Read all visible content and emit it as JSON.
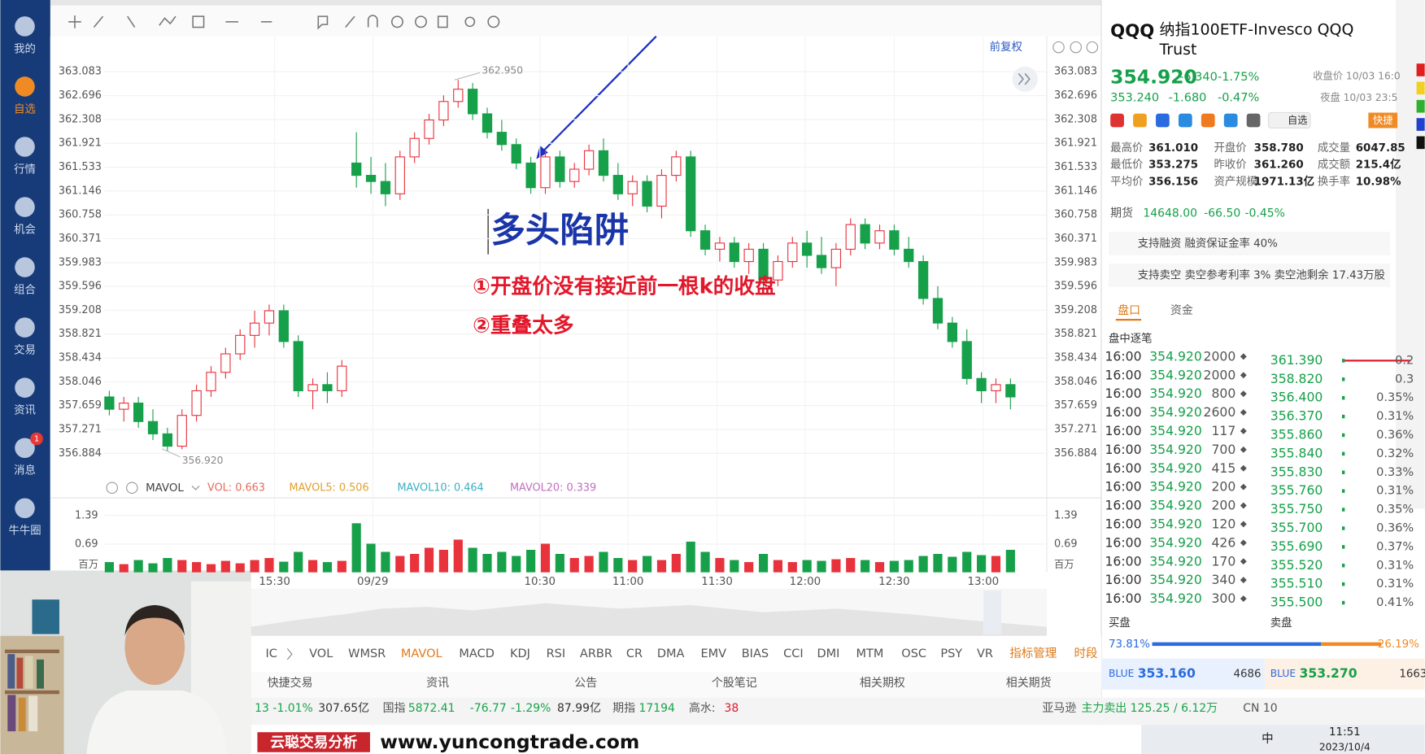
{
  "sidebar": {
    "items": [
      "我的",
      "自选",
      "行情",
      "机会",
      "组合",
      "交易",
      "资讯",
      "消息",
      "牛牛圈"
    ],
    "badge": "1"
  },
  "chart": {
    "type": "candlestick",
    "adjust": "前复权",
    "ylim": [
      356.574,
      363.585
    ],
    "yticks": [
      363.083,
      362.696,
      362.308,
      361.921,
      361.533,
      361.146,
      360.758,
      360.371,
      359.983,
      359.596,
      359.208,
      358.821,
      358.434,
      358.046,
      357.659,
      357.271,
      356.884
    ],
    "grid": true,
    "colors": {
      "up": "#e8323c",
      "down": "#17a04a"
    },
    "high_label": "362.950",
    "low_label": "356.920",
    "candles": [
      [
        357.8,
        357.9,
        357.5,
        357.6
      ],
      [
        357.6,
        357.8,
        357.4,
        357.7
      ],
      [
        357.7,
        357.8,
        357.3,
        357.4
      ],
      [
        357.4,
        357.6,
        357.1,
        357.2
      ],
      [
        357.2,
        357.3,
        356.92,
        357.0
      ],
      [
        357.0,
        357.6,
        356.95,
        357.5
      ],
      [
        357.5,
        358.0,
        357.4,
        357.9
      ],
      [
        357.9,
        358.3,
        357.8,
        358.2
      ],
      [
        358.2,
        358.6,
        358.1,
        358.5
      ],
      [
        358.5,
        358.9,
        358.4,
        358.8
      ],
      [
        358.8,
        359.2,
        358.6,
        359.0
      ],
      [
        359.0,
        359.3,
        358.8,
        359.2
      ],
      [
        359.2,
        359.3,
        358.6,
        358.7
      ],
      [
        358.7,
        358.8,
        357.8,
        357.9
      ],
      [
        357.9,
        358.1,
        357.6,
        358.0
      ],
      [
        358.0,
        358.2,
        357.7,
        357.9
      ],
      [
        357.9,
        358.4,
        357.8,
        358.3
      ],
      [
        361.6,
        362.1,
        361.2,
        361.4
      ],
      [
        361.4,
        361.7,
        361.1,
        361.3
      ],
      [
        361.3,
        361.6,
        360.9,
        361.1
      ],
      [
        361.1,
        361.8,
        361.0,
        361.7
      ],
      [
        361.7,
        362.1,
        361.6,
        362.0
      ],
      [
        362.0,
        362.4,
        361.9,
        362.3
      ],
      [
        362.3,
        362.7,
        362.2,
        362.6
      ],
      [
        362.6,
        362.95,
        362.5,
        362.8
      ],
      [
        362.8,
        362.9,
        362.3,
        362.4
      ],
      [
        362.4,
        362.5,
        362.0,
        362.1
      ],
      [
        362.1,
        362.3,
        361.8,
        361.9
      ],
      [
        361.9,
        362.0,
        361.5,
        361.6
      ],
      [
        361.6,
        361.7,
        361.1,
        361.2
      ],
      [
        361.2,
        361.8,
        361.1,
        361.7
      ],
      [
        361.7,
        361.8,
        361.2,
        361.3
      ],
      [
        361.3,
        361.6,
        361.2,
        361.5
      ],
      [
        361.5,
        361.9,
        361.4,
        361.8
      ],
      [
        361.8,
        362.0,
        361.3,
        361.4
      ],
      [
        361.4,
        361.6,
        361.0,
        361.1
      ],
      [
        361.1,
        361.4,
        360.9,
        361.3
      ],
      [
        361.3,
        361.4,
        360.8,
        360.9
      ],
      [
        360.9,
        361.5,
        360.7,
        361.4
      ],
      [
        361.4,
        361.8,
        361.3,
        361.7
      ],
      [
        361.7,
        361.8,
        360.4,
        360.5
      ],
      [
        360.5,
        360.6,
        360.1,
        360.2
      ],
      [
        360.2,
        360.4,
        360.0,
        360.3
      ],
      [
        360.3,
        360.4,
        359.9,
        360.0
      ],
      [
        360.0,
        360.3,
        359.8,
        360.2
      ],
      [
        360.2,
        360.3,
        359.5,
        359.7
      ],
      [
        359.7,
        360.1,
        359.6,
        360.0
      ],
      [
        360.0,
        360.4,
        359.9,
        360.3
      ],
      [
        360.3,
        360.5,
        359.9,
        360.1
      ],
      [
        360.1,
        360.4,
        359.8,
        359.9
      ],
      [
        359.9,
        360.3,
        359.6,
        360.2
      ],
      [
        360.2,
        360.7,
        360.1,
        360.6
      ],
      [
        360.6,
        360.7,
        360.2,
        360.3
      ],
      [
        360.3,
        360.6,
        360.2,
        360.5
      ],
      [
        360.5,
        360.6,
        360.1,
        360.2
      ],
      [
        360.2,
        360.4,
        359.9,
        360.0
      ],
      [
        360.0,
        360.1,
        359.3,
        359.4
      ],
      [
        359.4,
        359.6,
        358.9,
        359.0
      ],
      [
        359.0,
        359.1,
        358.6,
        358.7
      ],
      [
        358.7,
        358.9,
        358.0,
        358.1
      ],
      [
        358.1,
        358.2,
        357.7,
        357.9
      ],
      [
        357.9,
        358.1,
        357.7,
        358.0
      ],
      [
        358.0,
        358.1,
        357.6,
        357.8
      ]
    ],
    "times": [
      "15:30",
      "09/29",
      "10:30",
      "11:00",
      "11:30",
      "12:00",
      "12:30",
      "13:00"
    ],
    "indicator": {
      "name": "MAVOL",
      "items": [
        "VOL: 0.663",
        "MAVOL5: 0.506",
        "MAVOL10: 0.464",
        "MAVOL20: 0.339"
      ],
      "colors": [
        "#e56a5a",
        "#e0a030",
        "#3aafc2",
        "#c070c0"
      ]
    },
    "volume": {
      "ylim": [
        0,
        1.6
      ],
      "yticks": [
        1.39,
        0.69
      ],
      "unit": "百万",
      "values": [
        0.25,
        0.2,
        0.3,
        0.22,
        0.35,
        0.3,
        0.25,
        0.2,
        0.28,
        0.22,
        0.3,
        0.35,
        0.26,
        0.5,
        0.3,
        0.25,
        0.28,
        1.2,
        0.7,
        0.5,
        0.4,
        0.45,
        0.6,
        0.55,
        0.8,
        0.6,
        0.45,
        0.5,
        0.4,
        0.55,
        0.7,
        0.45,
        0.35,
        0.4,
        0.5,
        0.35,
        0.3,
        0.4,
        0.3,
        0.45,
        0.75,
        0.5,
        0.35,
        0.3,
        0.25,
        0.45,
        0.3,
        0.25,
        0.3,
        0.28,
        0.32,
        0.35,
        0.3,
        0.25,
        0.28,
        0.3,
        0.4,
        0.45,
        0.38,
        0.5,
        0.42,
        0.4,
        0.55
      ]
    }
  },
  "annotations": {
    "title": "多头陷阱",
    "notes": [
      "①开盘价没有接近前一根k的收盘",
      "②重叠太多"
    ]
  },
  "indicator_tabs": [
    "IC",
    "VOL",
    "WMSR",
    "MAVOL",
    "MACD",
    "KDJ",
    "RSI",
    "ARBR",
    "CR",
    "DMA",
    "EMV",
    "BIAS",
    "CCI",
    "DMI",
    "MTM",
    "OSC",
    "PSY",
    "VR",
    "指标管理",
    "时段"
  ],
  "bottom_tabs": [
    "快捷交易",
    "资讯",
    "公告",
    "个股笔记",
    "相关期权",
    "相关期货"
  ],
  "ticker": [
    "13",
    "-1.01%",
    "307.65亿",
    "国指",
    "5872.41",
    "-76.77",
    "-1.29%",
    "87.99亿",
    "期指",
    "17194",
    "高水:",
    "38",
    "亚马逊",
    "主力卖出 125.25 / 6.12万",
    "CN 10"
  ],
  "watermark": [
    "云聪交易分析",
    "www.yuncongtrade.com"
  ],
  "taskbar": {
    "ime": "中",
    "time": "11:51",
    "date": "2023/10/4"
  },
  "quote": {
    "symbol": "QQQ",
    "name": "纳指100ETF-Invesco QQQ Trust",
    "price": "354.920",
    "change": "-6.340",
    "pct": "-1.75%",
    "close_note": "收盘价 10/03 16:0",
    "night_price": "353.240",
    "night_change": "-1.680",
    "night_pct": "-0.47%",
    "night_note": "夜盘 10/03 23:5",
    "watch": "自选",
    "quick": "快捷",
    "stats": [
      [
        "最高价",
        "361.010"
      ],
      [
        "开盘价",
        "358.780"
      ],
      [
        "成交量",
        "6047.85"
      ],
      [
        "最低价",
        "353.275"
      ],
      [
        "昨收价",
        "361.260"
      ],
      [
        "成交额",
        "215.4亿"
      ],
      [
        "平均价",
        "356.156"
      ],
      [
        "资产规模",
        "1971.13亿"
      ],
      [
        "换手率",
        "10.98%"
      ]
    ],
    "futures": [
      "期货",
      "14648.00",
      "-66.50",
      "-0.45%"
    ],
    "margin": "支持融资 融资保证金率 40%",
    "short": "支持卖空 卖空参考利率 3% 卖空池剩余 17.43万股",
    "tabs": [
      "盘口",
      "资金"
    ],
    "ticks_title": "盘中逐笔",
    "trades": [
      [
        "16:00",
        "354.920",
        "2000"
      ],
      [
        "16:00",
        "354.920",
        "2000"
      ],
      [
        "16:00",
        "354.920",
        "800"
      ],
      [
        "16:00",
        "354.920",
        "2600"
      ],
      [
        "16:00",
        "354.920",
        "117"
      ],
      [
        "16:00",
        "354.920",
        "700"
      ],
      [
        "16:00",
        "354.920",
        "415"
      ],
      [
        "16:00",
        "354.920",
        "200"
      ],
      [
        "16:00",
        "354.920",
        "200"
      ],
      [
        "16:00",
        "354.920",
        "120"
      ],
      [
        "16:00",
        "354.920",
        "426"
      ],
      [
        "16:00",
        "354.920",
        "170"
      ],
      [
        "16:00",
        "354.920",
        "340"
      ],
      [
        "16:00",
        "354.920",
        "300"
      ]
    ],
    "book": [
      [
        "361.390",
        "0.2"
      ],
      [
        "358.820",
        "0.3"
      ],
      [
        "356.400",
        "0.35%"
      ],
      [
        "356.370",
        "0.31%"
      ],
      [
        "355.860",
        "0.36%"
      ],
      [
        "355.840",
        "0.32%"
      ],
      [
        "355.830",
        "0.33%"
      ],
      [
        "355.760",
        "0.31%"
      ],
      [
        "355.750",
        "0.35%"
      ],
      [
        "355.700",
        "0.36%"
      ],
      [
        "355.690",
        "0.37%"
      ],
      [
        "355.520",
        "0.31%"
      ],
      [
        "355.510",
        "0.31%"
      ],
      [
        "355.500",
        "0.41%"
      ]
    ],
    "bid_label": "买盘",
    "ask_label": "卖盘",
    "bid_pct": 73.81,
    "ask_pct": 26.19,
    "bid_pct_label": "73.81%",
    "ask_pct_label": "26.19%",
    "bid": [
      "BLUE",
      "353.160",
      "4686"
    ],
    "ask": [
      "BLUE",
      "353.270",
      "1663"
    ]
  }
}
